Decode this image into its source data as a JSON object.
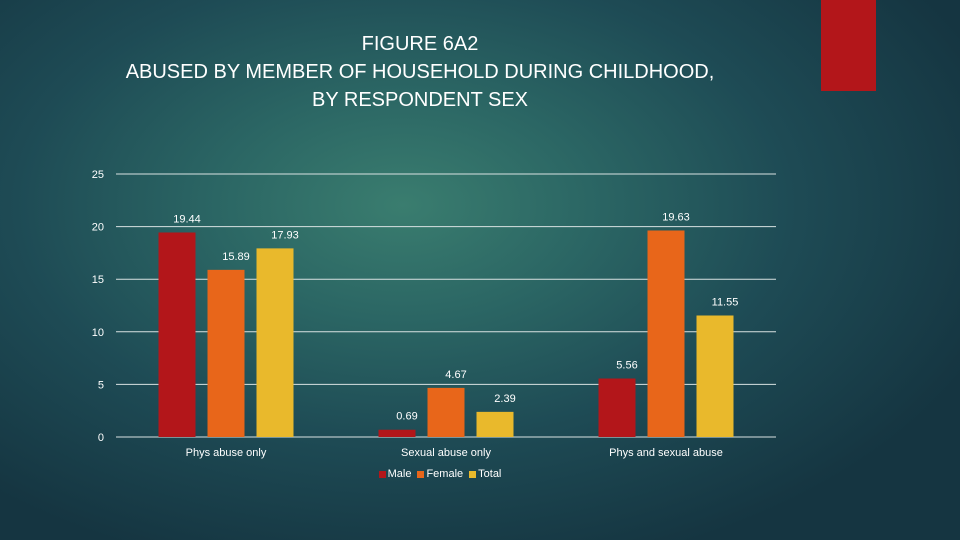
{
  "title_lines": [
    "FIGURE 6A2",
    "ABUSED BY MEMBER OF HOUSEHOLD DURING CHILDHOOD,",
    "BY RESPONDENT SEX"
  ],
  "colors": {
    "accent": "#b3161a",
    "grid": "#d9e2e2",
    "text": "#ffffff"
  },
  "chart_data": {
    "type": "bar",
    "title": "FIGURE 6A2 ABUSED BY MEMBER OF HOUSEHOLD DURING CHILDHOOD, BY RESPONDENT SEX",
    "categories": [
      "Phys abuse only",
      "Sexual abuse only",
      "Phys and sexual abuse"
    ],
    "series": [
      {
        "name": "Male",
        "color": "#b3161a",
        "values": [
          19.44,
          0.69,
          5.56
        ]
      },
      {
        "name": "Female",
        "color": "#e8661a",
        "values": [
          15.89,
          4.67,
          19.63
        ]
      },
      {
        "name": "Total",
        "color": "#e9b92c",
        "values": [
          17.93,
          2.39,
          11.55
        ]
      }
    ],
    "data_labels": [
      [
        "19.44",
        "0.69",
        "5.56"
      ],
      [
        "15.89",
        "4.67",
        "19.63"
      ],
      [
        "17.93",
        "2.39",
        "11.55"
      ]
    ],
    "yticks": [
      0,
      5,
      10,
      15,
      20,
      25
    ],
    "ylim": [
      0,
      25
    ],
    "xlabel": "",
    "ylabel": "",
    "grid": true,
    "legend": "bottom"
  }
}
